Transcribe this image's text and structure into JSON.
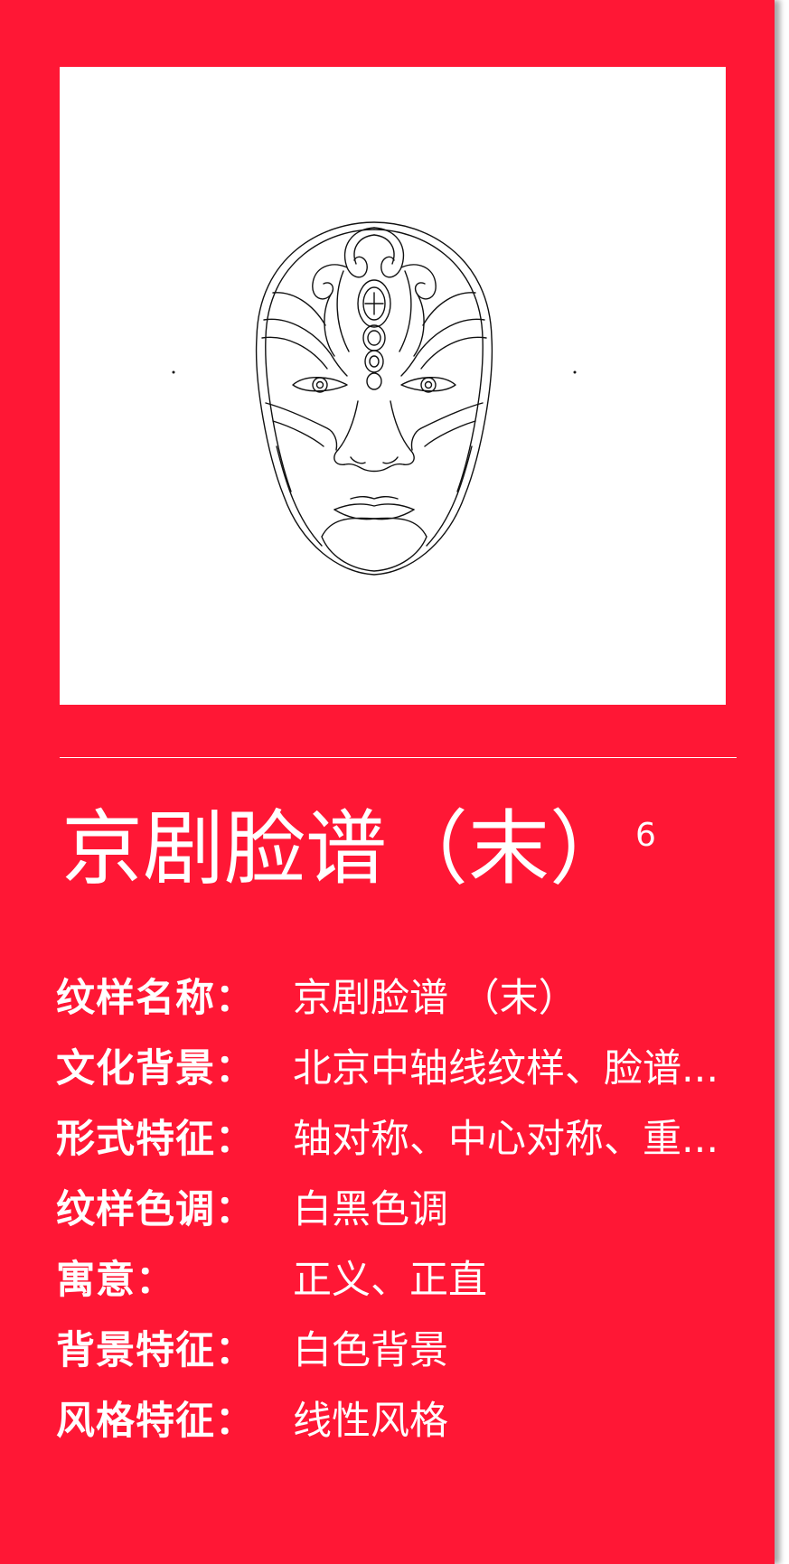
{
  "colors": {
    "background": "#ff1735",
    "frame": "#ffffff",
    "text": "#ffffff",
    "line_art": "#111111"
  },
  "artwork": {
    "icon": "peking-opera-mask-line-art"
  },
  "title": "京剧脸谱（末）",
  "title_number": "6",
  "attributes": [
    {
      "label": "纹样名称：",
      "value": "京剧脸谱 （末）"
    },
    {
      "label": "文化背景：",
      "value": "北京中轴线纹样、脸谱..."
    },
    {
      "label": "形式特征：",
      "value": "轴对称、中心对称、重..."
    },
    {
      "label": "纹样色调：",
      "value": "白黑色调"
    },
    {
      "label": "寓意：",
      "value": "正义、正直"
    },
    {
      "label": "背景特征：",
      "value": "白色背景"
    },
    {
      "label": "风格特征：",
      "value": "线性风格"
    }
  ]
}
